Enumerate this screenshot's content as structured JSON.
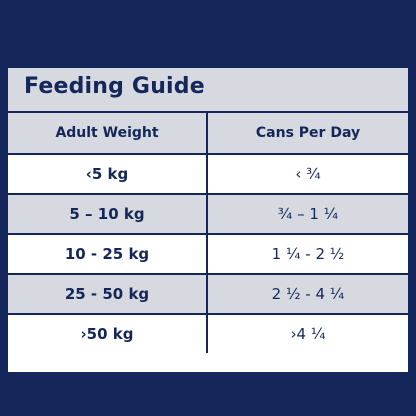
{
  "guide": {
    "title": "Feeding Guide",
    "headers": {
      "weight": "Adult Weight",
      "cans": "Cans Per Day"
    },
    "rows": [
      {
        "weight": "‹5 kg",
        "cans": "‹ ¾"
      },
      {
        "weight": "5 – 10 kg",
        "cans": "¾ – 1 ¼"
      },
      {
        "weight": "10 - 25 kg",
        "cans": "1 ¼ - 2 ½"
      },
      {
        "weight": "25 - 50 kg",
        "cans": "2 ½ - 4 ¼"
      },
      {
        "weight": "›50 kg",
        "cans": "›4 ¼"
      }
    ]
  },
  "colors": {
    "background": "#15275a",
    "header_fill": "#d6d9df",
    "row_white": "#ffffff",
    "text": "#15275a"
  }
}
